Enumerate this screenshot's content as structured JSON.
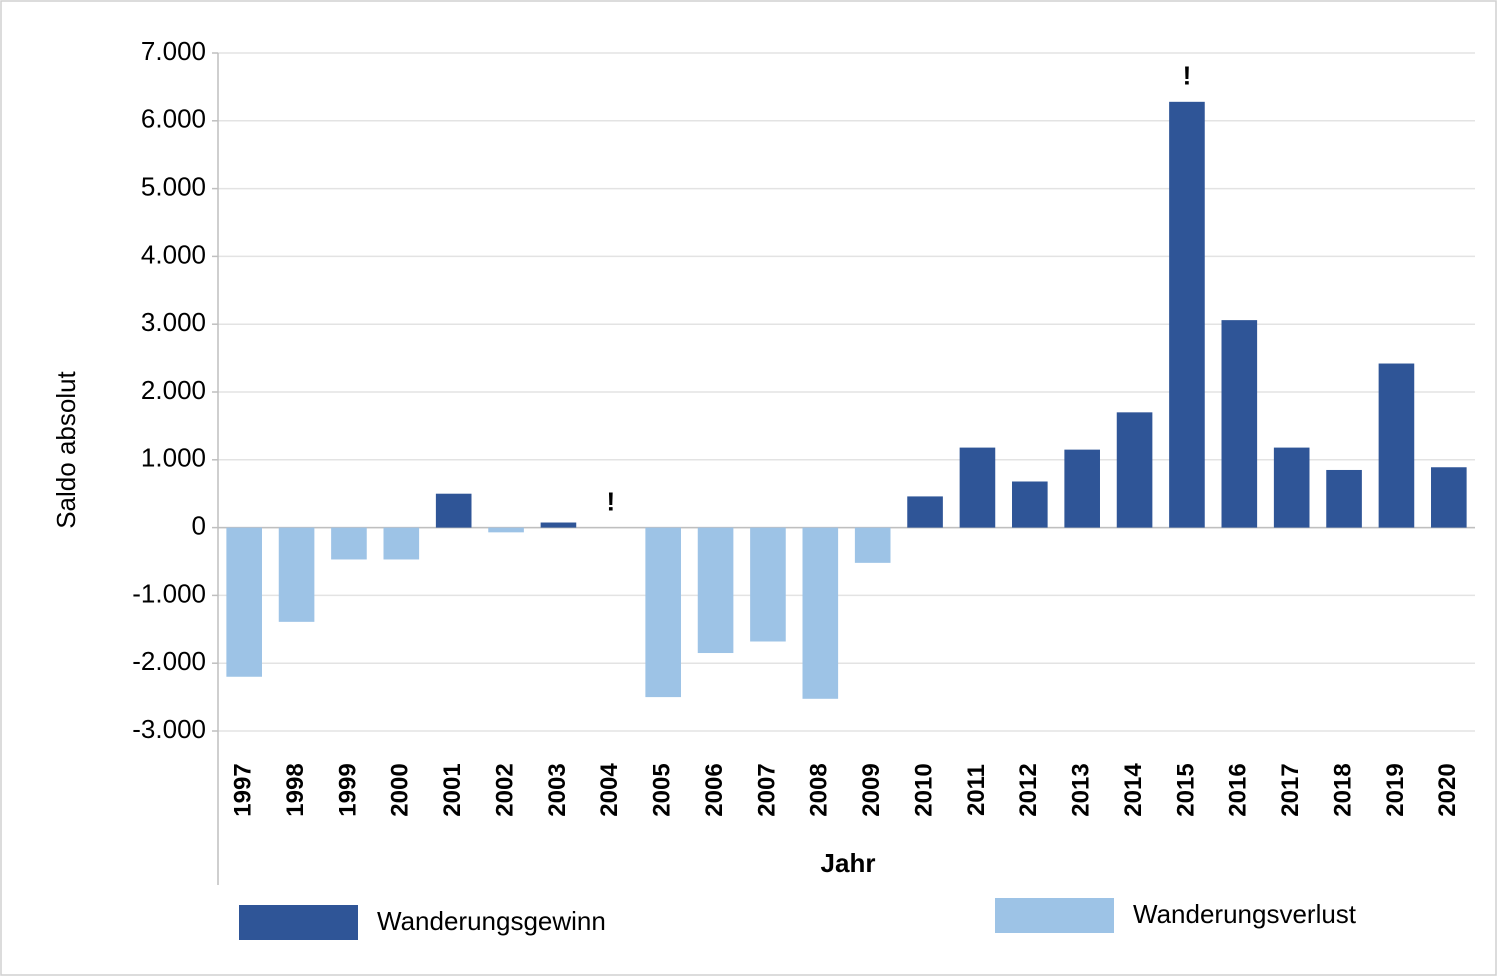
{
  "chart_data": {
    "type": "bar",
    "x_label": "Jahr",
    "y_label": "Saldo absolut",
    "categories": [
      "1997",
      "1998",
      "1999",
      "2000",
      "2001",
      "2002",
      "2003",
      "2004",
      "2005",
      "2006",
      "2007",
      "2008",
      "2009",
      "2010",
      "2011",
      "2012",
      "2013",
      "2014",
      "2015",
      "2016",
      "2017",
      "2018",
      "2019",
      "2020"
    ],
    "series": [
      {
        "name": "Wanderungsgewinn",
        "color": "#2f5597",
        "values": [
          null,
          null,
          null,
          null,
          500,
          null,
          75,
          null,
          null,
          null,
          null,
          null,
          null,
          460,
          1180,
          680,
          1150,
          1700,
          6280,
          3060,
          1180,
          850,
          2420,
          890
        ]
      },
      {
        "name": "Wanderungsverlust",
        "color": "#9dc3e6",
        "values": [
          -2200,
          -1390,
          -470,
          -470,
          null,
          -70,
          null,
          null,
          -2500,
          -1850,
          -1680,
          -2525,
          -520,
          null,
          null,
          null,
          null,
          null,
          null,
          null,
          null,
          null,
          null,
          null
        ]
      }
    ],
    "annotations": [
      {
        "text": "!",
        "category": "2004"
      },
      {
        "text": "!",
        "category": "2015"
      }
    ],
    "ylim": [
      -3000,
      7000
    ],
    "yticks": [
      {
        "value": -3000,
        "label": "-3.000"
      },
      {
        "value": -2000,
        "label": "-2.000"
      },
      {
        "value": -1000,
        "label": "-1.000"
      },
      0,
      {
        "value": 1000,
        "label": "1.000"
      },
      {
        "value": 2000,
        "label": "2.000"
      },
      {
        "value": 3000,
        "label": "3.000"
      },
      {
        "value": 4000,
        "label": "4.000"
      },
      {
        "value": 5000,
        "label": "5.000"
      },
      {
        "value": 6000,
        "label": "6.000"
      },
      {
        "value": 7000,
        "label": "7.000"
      }
    ],
    "grid": true
  }
}
